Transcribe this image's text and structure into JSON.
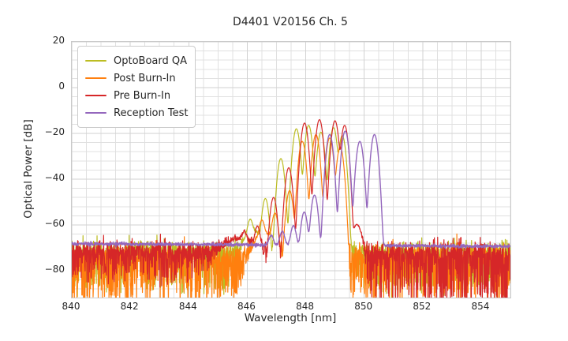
{
  "title": "D4401 V20156 Ch. 5",
  "colors": {
    "background": "#ffffff",
    "text": "#262626",
    "grid_minor": "#e0e0e0",
    "grid_major": "#d2d2d2",
    "spine": "#c9c9c9"
  },
  "chart_data": {
    "type": "line",
    "title": "D4401 V20156 Ch. 5",
    "xlabel": "Wavelength [nm]",
    "ylabel": "Optical Power [dB]",
    "xlim": [
      840,
      855
    ],
    "ylim": [
      -91.7,
      20
    ],
    "x_ticks": [
      840,
      842,
      844,
      846,
      848,
      850,
      852,
      854
    ],
    "x_tick_labels": [
      "840",
      "842",
      "844",
      "846",
      "848",
      "850",
      "852",
      "854"
    ],
    "y_ticks": [
      20,
      0,
      -20,
      -40,
      -60,
      -80
    ],
    "y_tick_labels": [
      "20",
      "0",
      "−20",
      "−40",
      "−60",
      "−80"
    ],
    "grid": {
      "on": true,
      "x_minor_step_nm": 0.5,
      "y_minor_step_db": 4,
      "x_major_step_nm": 2,
      "y_major_step_db": 20
    },
    "legend_position": "upper left",
    "sample_step_nm": 0.008,
    "default_mode_width_nm": 0.09,
    "series": [
      {
        "name": "OptoBoard QA",
        "color": "#bcbd22",
        "line_width": 1.2,
        "noise_floor_db": [
          -71.5,
          -71.5
        ],
        "noise_sigma_db": 2.2,
        "spike_prob": 0.3,
        "spike_depth_db": 17,
        "peaks": [
          [
            846.2,
            -63,
            0.3
          ],
          [
            846.1,
            -59
          ],
          [
            846.62,
            -48.5
          ],
          [
            847.15,
            -31
          ],
          [
            847.68,
            -18
          ],
          [
            848.1,
            -16.5
          ],
          [
            848.52,
            -19.5
          ],
          [
            848.95,
            -17.5
          ],
          [
            849.25,
            -21
          ]
        ]
      },
      {
        "name": "Post Burn-In",
        "color": "#ff7f0e",
        "line_width": 1.2,
        "noise_floor_db": [
          -73.5,
          -73.5
        ],
        "noise_sigma_db": 2.6,
        "spike_prob": 0.45,
        "spike_depth_db": 20,
        "peaks": [
          [
            846.6,
            -64,
            0.35
          ],
          [
            846.5,
            -59
          ],
          [
            846.95,
            -55
          ],
          [
            847.45,
            -45
          ],
          [
            847.88,
            -23.5
          ],
          [
            848.35,
            -20.5
          ],
          [
            848.82,
            -22
          ],
          [
            849.18,
            -26
          ]
        ]
      },
      {
        "name": "Pre Burn-In",
        "color": "#d62728",
        "line_width": 1.2,
        "noise_floor_db": [
          -70.8,
          -72.3
        ],
        "noise_sigma_db": 2.3,
        "spike_prob": 0.38,
        "spike_depth_db": 13,
        "spike_depth_right_db": 24,
        "spike_right_from_nm": 849.6,
        "peaks": [
          [
            845.7,
            -67,
            0.6
          ],
          [
            845.9,
            -65.5
          ],
          [
            846.35,
            -61
          ],
          [
            846.9,
            -48
          ],
          [
            847.42,
            -35
          ],
          [
            847.96,
            -15.5
          ],
          [
            848.47,
            -14
          ],
          [
            849.0,
            -14.5
          ],
          [
            849.33,
            -16.5
          ],
          [
            849.75,
            -60,
            0.15
          ]
        ]
      },
      {
        "name": "Reception Test",
        "color": "#9467bd",
        "line_width": 1.4,
        "noise_floor_db": [
          -68.2,
          -69.4
        ],
        "noise_sigma_db": 0.35,
        "spike_prob": 0,
        "spike_depth_db": 0,
        "peaks": [
          [
            846.82,
            -66.5
          ],
          [
            847.2,
            -64
          ],
          [
            847.58,
            -61
          ],
          [
            847.95,
            -54.5
          ],
          [
            848.3,
            -47
          ],
          [
            848.82,
            -20.5
          ],
          [
            849.35,
            -19
          ],
          [
            849.85,
            -23.5
          ],
          [
            850.35,
            -20.5
          ]
        ]
      }
    ]
  }
}
